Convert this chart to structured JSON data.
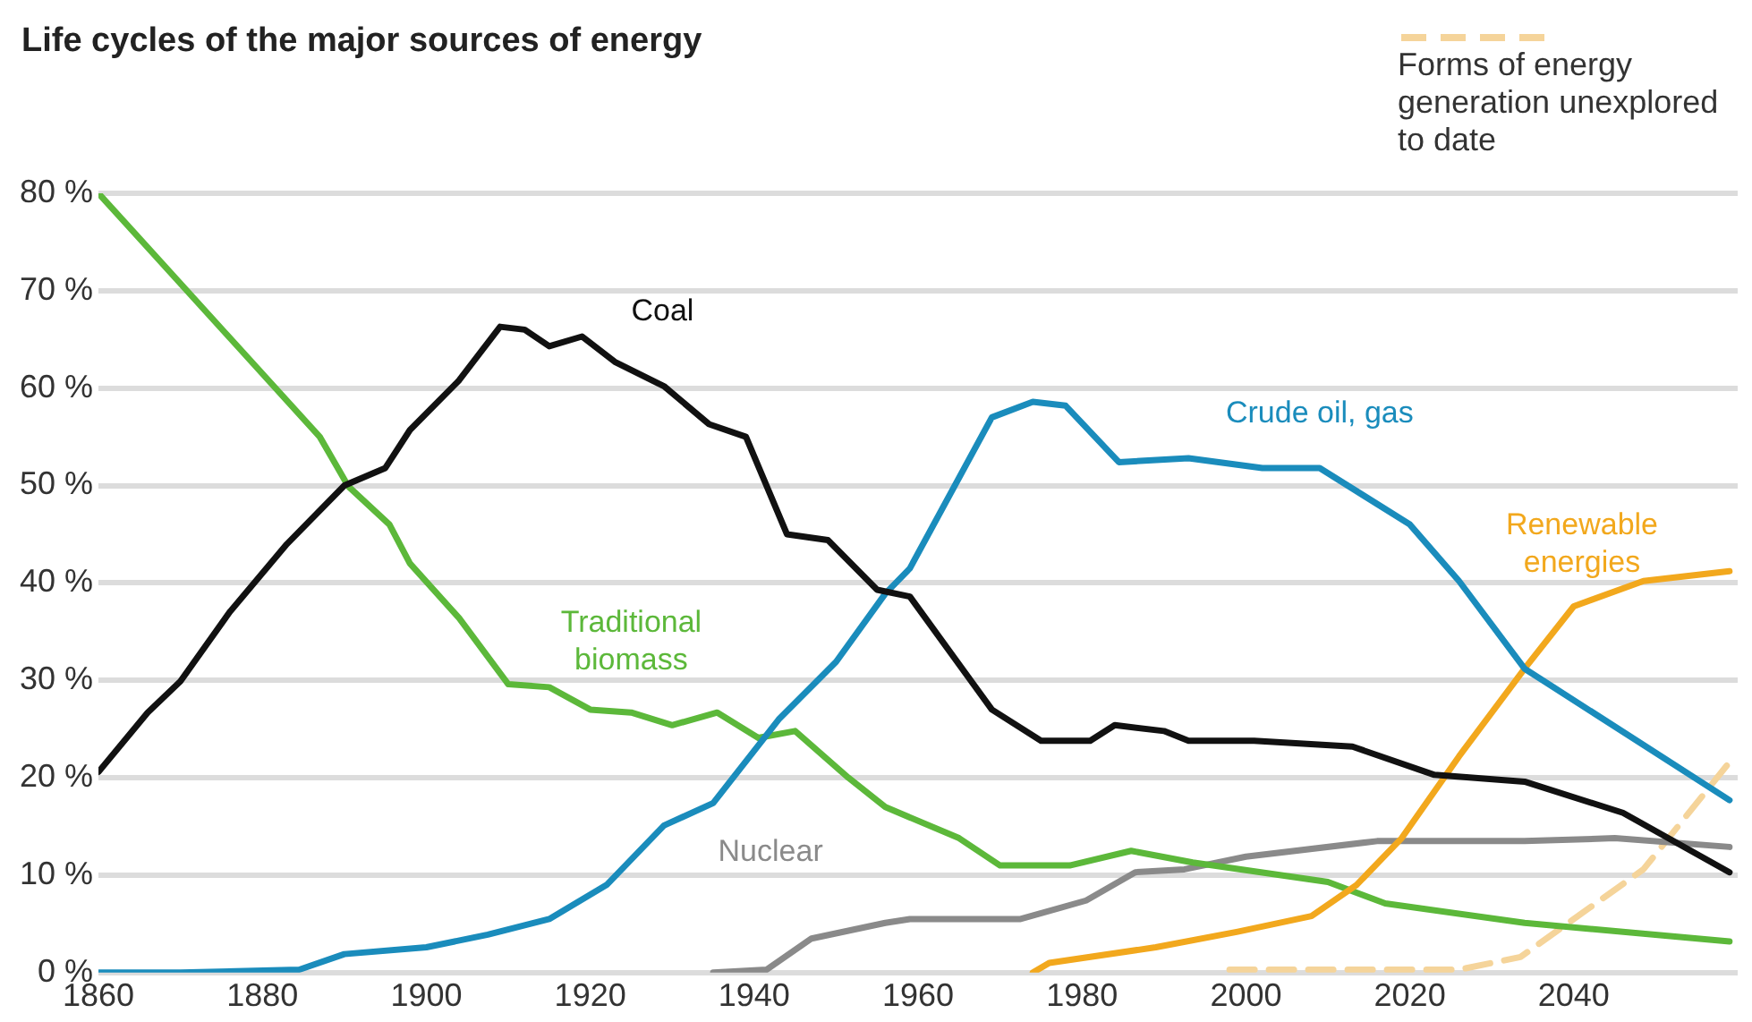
{
  "chart_data": {
    "type": "line",
    "title": "Life cycles of the major sources of energy",
    "xlim": [
      1860,
      2060
    ],
    "xticks": [
      1860,
      1880,
      1900,
      1920,
      1940,
      1960,
      1980,
      2000,
      2020,
      2040
    ],
    "ylim": [
      0,
      80
    ],
    "yticks": [
      {
        "value": 0,
        "label": "0 %"
      },
      {
        "value": 10,
        "label": "10 %"
      },
      {
        "value": 20,
        "label": "20 %"
      },
      {
        "value": 30,
        "label": "30 %"
      },
      {
        "value": 40,
        "label": "40 %"
      },
      {
        "value": 50,
        "label": "50 %"
      },
      {
        "value": 60,
        "label": "60 %"
      },
      {
        "value": 70,
        "label": "70 %"
      },
      {
        "value": 80,
        "label": "80 %"
      }
    ],
    "grid": "y",
    "legend": "top right",
    "marker": "none",
    "series": [
      {
        "name": "Coal",
        "color": "#111111",
        "x": [
          1860,
          1866,
          1870,
          1876,
          1883,
          1890,
          1895,
          1898,
          1904,
          1909,
          1912,
          1915,
          1919,
          1923,
          1929,
          1934.5,
          1939,
          1944,
          1949,
          1955,
          1959,
          1969,
          1975,
          1981,
          1984,
          1990,
          1993,
          2001,
          2013,
          2023,
          2034,
          2046,
          2059
        ],
        "values": [
          20.6,
          26.7,
          29.9,
          37,
          44,
          50,
          51.8,
          55.7,
          60.8,
          66.3,
          66,
          64.3,
          65.3,
          62.7,
          60.2,
          56.3,
          55,
          45,
          44.4,
          39.3,
          38.6,
          27,
          23.8,
          23.8,
          25.4,
          24.8,
          23.8,
          23.8,
          23.2,
          20.3,
          19.6,
          16.4,
          10.3
        ]
      },
      {
        "name": "Crude oil, gas",
        "color": "#1a8cbc",
        "x": [
          1860,
          1864,
          1870,
          1884.5,
          1890,
          1900,
          1907.5,
          1915,
          1922,
          1929,
          1935,
          1943,
          1950,
          1956,
          1959,
          1969,
          1974,
          1978,
          1984.5,
          1993,
          2002,
          2009,
          2020,
          2026,
          2034,
          2059
        ],
        "values": [
          0,
          0,
          0,
          0.3,
          1.9,
          2.6,
          3.9,
          5.5,
          9,
          15.1,
          17.4,
          26,
          31.9,
          38.9,
          41.5,
          57,
          58.6,
          58.2,
          52.4,
          52.8,
          51.8,
          51.8,
          46,
          40.2,
          31.2,
          17.7
        ]
      },
      {
        "name": "Renewable energies",
        "color": "#f2a81d",
        "x": [
          1974,
          1976,
          1989,
          1999,
          2008,
          2013.5,
          2019,
          2026,
          2034,
          2040,
          2048.5,
          2059
        ],
        "values": [
          0,
          1,
          2.6,
          4.2,
          5.8,
          9,
          13.8,
          22.2,
          31.2,
          37.6,
          40.2,
          41.2
        ]
      },
      {
        "name": "Traditional biomass",
        "color": "#5cb83a",
        "x": [
          1860,
          1887,
          1890.5,
          1895.5,
          1898,
          1904,
          1910,
          1915,
          1920,
          1925,
          1930,
          1935.5,
          1940.5,
          1945,
          1951.5,
          1956,
          1965,
          1970,
          1978.5,
          1986,
          1993.5,
          2010,
          2017,
          2034,
          2059
        ],
        "values": [
          80,
          55,
          49.9,
          46,
          42,
          36.4,
          29.6,
          29.3,
          27,
          26.7,
          25.4,
          26.7,
          24.1,
          24.8,
          20,
          17,
          13.8,
          11,
          11,
          12.5,
          11.3,
          9.3,
          7.1,
          5.1,
          3.2
        ]
      },
      {
        "name": "Nuclear",
        "color": "#8a8a8a",
        "x": [
          1935,
          1941.5,
          1947,
          1956,
          1959,
          1972.5,
          1980.5,
          1986.5,
          1992.5,
          2000,
          2016,
          2034,
          2045,
          2059
        ],
        "values": [
          0,
          0.3,
          3.5,
          5.1,
          5.5,
          5.5,
          7.4,
          10.3,
          10.6,
          11.9,
          13.5,
          13.5,
          13.8,
          12.9
        ]
      },
      {
        "name": "Forms of energy generation unexplored to date",
        "color": "#f5d49a",
        "line_style": "dashed",
        "x": [
          1998,
          2026,
          2033.5,
          2048.5,
          2059
        ],
        "values": [
          0.3,
          0.3,
          1.6,
          10.6,
          21.6
        ]
      }
    ]
  }
}
